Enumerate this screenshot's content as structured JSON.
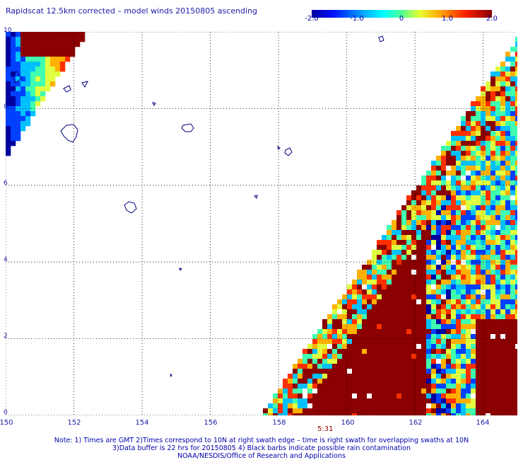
{
  "title": "Rapidscat 12.5km corrected – model winds 20150805 ascending",
  "colorbar": {
    "ticks": [
      "-2.0",
      "-1.0",
      "0",
      "1.0",
      "2.0"
    ],
    "range": [
      -2.0,
      2.0
    ],
    "colors": [
      "#0000a0",
      "#0040ff",
      "#00c0ff",
      "#40ffb0",
      "#e0ff40",
      "#ffb000",
      "#ff3000",
      "#8b0000"
    ]
  },
  "map": {
    "lon_range": [
      150,
      165
    ],
    "lat_range": [
      0,
      10
    ],
    "x_ticks": [
      "150",
      "152",
      "154",
      "156",
      "158",
      "160",
      "162",
      "164"
    ],
    "y_ticks": [
      "0",
      "2",
      "4",
      "6",
      "8",
      "10"
    ],
    "time_label": "5:31",
    "land_color": "#000080",
    "grid": true
  },
  "notes": {
    "line1": "Note: 1) Times are GMT 2)Times correspond to 10N at right swath edge – time is right swath for overlapping swaths at 10N",
    "line2": "3)Data buffer is 22 hrs for 20150805 4) Black barbs indicate possible rain contamination",
    "line3": "NOAA/NESDIS/Office of Research and Applications"
  }
}
